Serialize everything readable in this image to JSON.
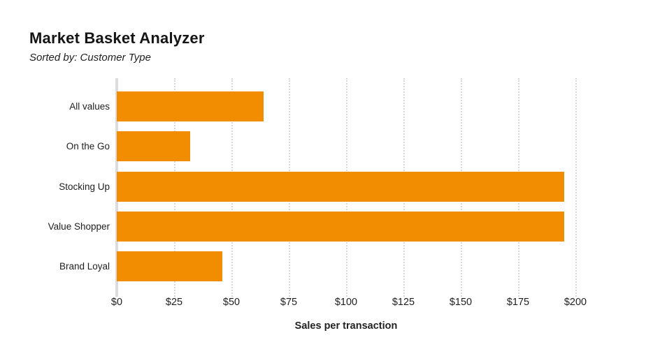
{
  "header": {
    "title": "Market Basket Analyzer",
    "subtitle": "Sorted by: Customer Type"
  },
  "chart_data": {
    "type": "bar",
    "orientation": "horizontal",
    "title": "Market Basket Analyzer",
    "subtitle": "Sorted by: Customer Type",
    "categories": [
      "All values",
      "On the Go",
      "Stocking Up",
      "Value Shopper",
      "Brand Loyal"
    ],
    "values": [
      64,
      32,
      195,
      195,
      46
    ],
    "xlabel": "Sales per transaction",
    "ylabel": "",
    "xlim": [
      0,
      200
    ],
    "tick_interval": 25,
    "tick_labels": [
      "$0",
      "$25",
      "$50",
      "$75",
      "$100",
      "$125",
      "$150",
      "$175",
      "$200"
    ],
    "bar_color": "#F28C00",
    "axis_line_color": "#DCDCDC",
    "gridline_color": "#D8D8D8",
    "grid": "vertical-dotted",
    "legend": "none"
  }
}
